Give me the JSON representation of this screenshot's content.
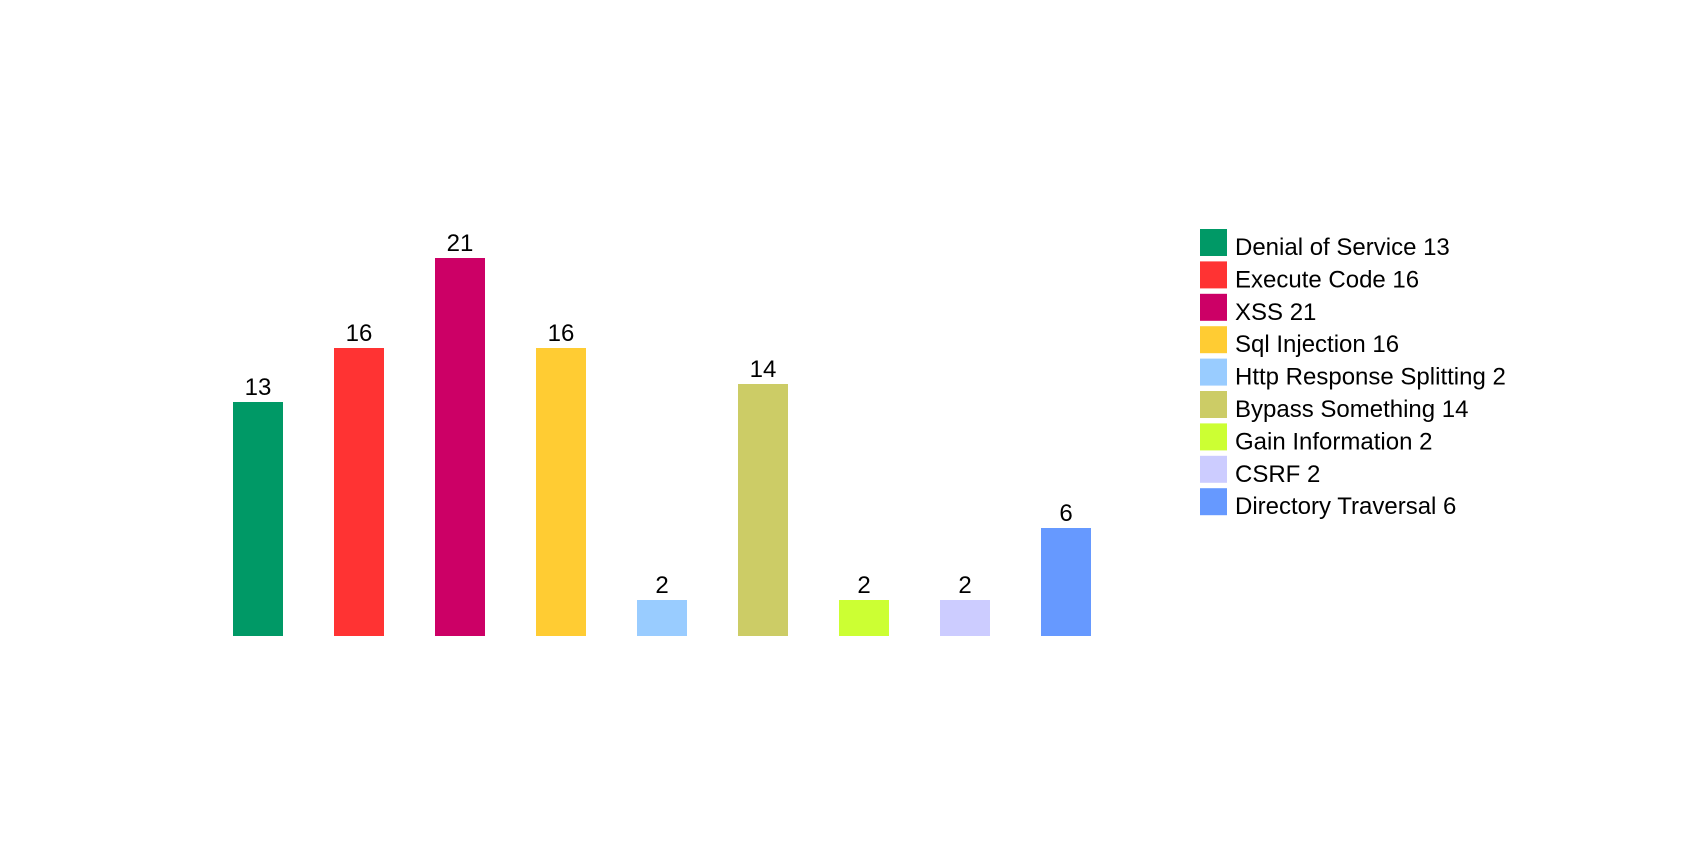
{
  "chart_data": {
    "type": "bar",
    "series": [
      {
        "name": "Denial of Service 13",
        "color": "#009966",
        "values": [
          13
        ]
      },
      {
        "name": "Execute Code 16",
        "color": "#ff3333",
        "values": [
          16
        ]
      },
      {
        "name": "XSS 21",
        "color": "#cc0066",
        "values": [
          21
        ]
      },
      {
        "name": "Sql Injection 16",
        "color": "#ffcc33",
        "values": [
          16
        ]
      },
      {
        "name": "Http Response Splitting 2",
        "color": "#99ccff",
        "values": [
          2
        ]
      },
      {
        "name": "Bypass Something 14",
        "color": "#cccc66",
        "values": [
          14
        ]
      },
      {
        "name": "Gain Information 2",
        "color": "#ccff33",
        "values": [
          2
        ]
      },
      {
        "name": "CSRF 2",
        "color": "#ccccff",
        "values": [
          2
        ]
      },
      {
        "name": "Directory Traversal 6",
        "color": "#6699ff",
        "values": [
          6
        ]
      }
    ],
    "ylim": [
      0,
      25
    ],
    "legend": "right"
  }
}
